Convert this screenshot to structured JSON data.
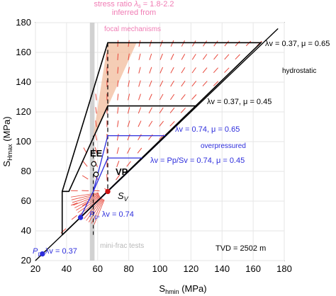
{
  "chart_data": {
    "type": "line",
    "title": "",
    "xlabel": "S_hmin (MPa)",
    "xlabel_main": "S",
    "xlabel_sub": "hmin",
    "xlabel_unit": " (MPa)",
    "ylabel_main": "S",
    "ylabel_sub": "Hmax",
    "ylabel_unit": " (MPa)",
    "xlim": [
      20,
      180
    ],
    "ylim": [
      20,
      180
    ],
    "xticks": [
      20,
      40,
      60,
      80,
      100,
      120,
      140,
      160,
      180
    ],
    "yticks": [
      20,
      40,
      60,
      80,
      100,
      120,
      140,
      160,
      180
    ],
    "grid": true,
    "series": [
      {
        "name": "hydrostatic",
        "x": [
          37.2,
          37.2,
          66.5,
          165,
          37.2
        ],
        "y": [
          37.2,
          66.5,
          166.5,
          166.5,
          37.2
        ]
      },
      {
        "name": "λv = 0.37, μ = 0.45",
        "x": [
          37.2,
          41.5,
          66.5,
          124
        ],
        "y": [
          66.5,
          66.5,
          124,
          124
        ]
      },
      {
        "name": "λv = 0.74, μ = 0.65",
        "x": [
          48.6,
          57.2,
          66.5,
          104,
          48.6
        ],
        "y": [
          48.6,
          66.5,
          104,
          104,
          48.6
        ]
      },
      {
        "name": "λv = 0.74, μ = 0.45",
        "x": [
          57.2,
          57.2,
          66.5,
          89
        ],
        "y": [
          66.5,
          66.5,
          89,
          89
        ]
      }
    ],
    "points": [
      {
        "label": "Sv",
        "x": 66.5,
        "y": 66.5
      },
      {
        "label": "VP",
        "x": 59,
        "y": 78
      },
      {
        "label": "EE",
        "x": 57.5,
        "y": 85
      },
      {
        "label": "Pp, λv = 0.74",
        "x": 49,
        "y": 49
      },
      {
        "label": "Pp, λv = 0.37",
        "x": 24.5,
        "y": 24.5
      }
    ],
    "annotations": {
      "stress_ratio": "stress ratio",
      "lambda_s": "λ",
      "lambda_s_sub": "s",
      "stress_ratio_val": " = 1.8-2.2",
      "inferred_from": "inferred from",
      "focal_mechanisms": "focal mechanisms",
      "label_037_065": "λv = 0.37, μ = 0.65",
      "hydrostatic": "hydrostatic",
      "label_037_045": "λv = 0.37, μ = 0.45",
      "label_074_065": "λv = 0.74, μ = 0.65",
      "overpressured": "overpressured",
      "label_074_045": "λv = Pp/Sv = 0.74, μ = 0.45",
      "ee": "EE",
      "vp": "VP",
      "sv": "S",
      "sv_sub": "V",
      "pp_074": "P",
      "pp_074_sub": "p",
      "pp_074_rest": ", λv = 0.74",
      "pp_037": "P",
      "pp_037_sub": "p",
      "pp_037_rest": ", λv = 0.37",
      "minifrac": "mini-frac tests",
      "tvd": "TVD = 2502 m"
    },
    "colors": {
      "black": "#000000",
      "blue": "#2d2ddc",
      "red": "#e8483c",
      "pink": "#f07cb4",
      "orange_fill": "#f2c1a2",
      "gray_band": "#c9c9c9",
      "grid": "#e6e6e6"
    }
  }
}
